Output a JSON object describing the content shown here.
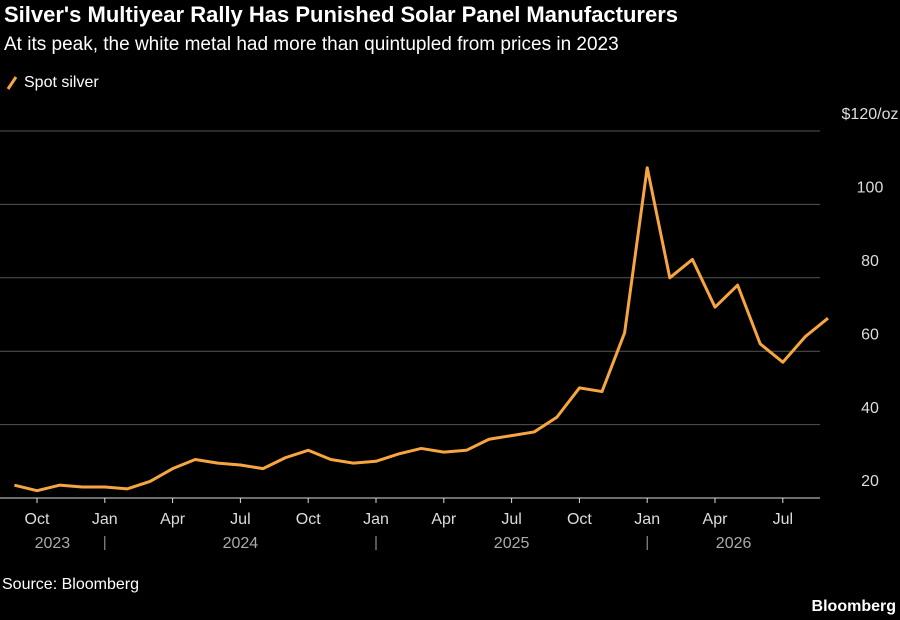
{
  "chart_data": {
    "type": "line",
    "title": "Silver's Multiyear Rally Has Punished Solar Panel Manufacturers",
    "subtitle": "At its peak, the white metal had more than quintupled from prices in 2023",
    "source": "Source: Bloomberg",
    "brand": "Bloomberg",
    "x": [
      "2023-09",
      "2023-10",
      "2023-11",
      "2023-12",
      "2024-01",
      "2024-02",
      "2024-03",
      "2024-04",
      "2024-05",
      "2024-06",
      "2024-07",
      "2024-08",
      "2024-09",
      "2024-10",
      "2024-11",
      "2024-12",
      "2025-01",
      "2025-02",
      "2025-03",
      "2025-04",
      "2025-05",
      "2025-06",
      "2025-07",
      "2025-08",
      "2025-09",
      "2025-10",
      "2025-11",
      "2025-12",
      "2026-01",
      "2026-02",
      "2026-03",
      "2026-04",
      "2026-05",
      "2026-06",
      "2026-07",
      "2026-08",
      "2026-09"
    ],
    "series": [
      {
        "name": "Spot silver",
        "color": "#f7a541",
        "values": [
          23.5,
          22,
          23.5,
          23,
          23,
          22.5,
          24.5,
          28,
          30.5,
          29.5,
          29,
          28,
          31,
          33,
          30.5,
          29.5,
          30,
          32,
          33.5,
          32.5,
          33,
          36,
          37,
          38,
          42,
          50,
          49,
          65,
          110,
          80,
          85,
          72,
          78,
          62,
          57,
          64,
          69
        ]
      }
    ],
    "ylim": [
      20,
      120
    ],
    "yticks": [
      20,
      40,
      60,
      80,
      100,
      {
        "value": 120,
        "label": "$120/oz"
      }
    ],
    "xticks": [
      {
        "value": "2023-10",
        "label": "Oct"
      },
      {
        "value": "2024-01",
        "label": "Jan"
      },
      {
        "value": "2024-04",
        "label": "Apr"
      },
      {
        "value": "2024-07",
        "label": "Jul"
      },
      {
        "value": "2024-10",
        "label": "Oct"
      },
      {
        "value": "2025-01",
        "label": "Jan"
      },
      {
        "value": "2025-04",
        "label": "Apr"
      },
      {
        "value": "2025-07",
        "label": "Jul"
      },
      {
        "value": "2025-10",
        "label": "Oct"
      },
      {
        "value": "2026-01",
        "label": "Jan"
      },
      {
        "value": "2026-04",
        "label": "Apr"
      },
      {
        "value": "2026-07",
        "label": "Jul"
      }
    ],
    "year_labels": [
      "2023",
      "2024",
      "2025",
      "2026"
    ],
    "grid": true
  }
}
